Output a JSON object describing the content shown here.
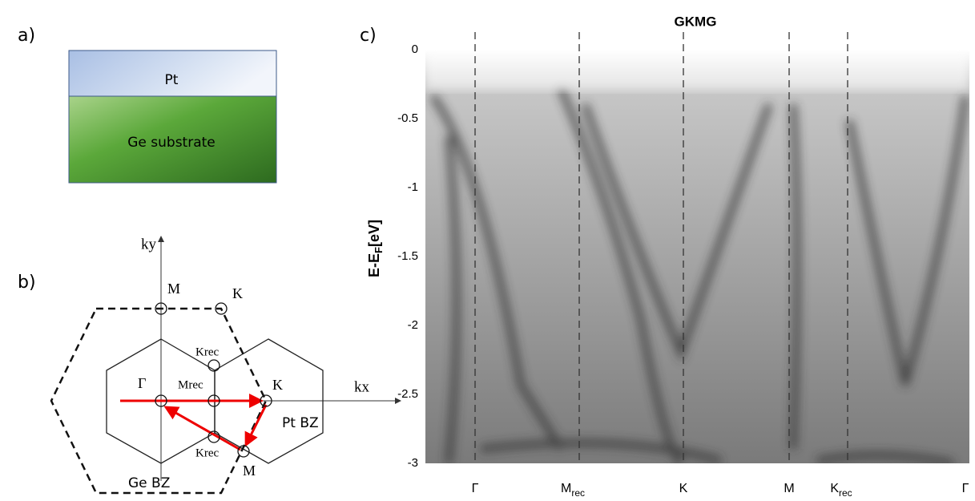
{
  "panel_a": {
    "label": "a)",
    "top_layer": "Pt",
    "bottom_layer": "Ge substrate"
  },
  "panel_b": {
    "label": "b)",
    "ky": "ky",
    "kx": "kx",
    "points": [
      "M",
      "K",
      "Krec",
      "Γ",
      "Mrec",
      "K",
      "Krec",
      "M"
    ],
    "pt_bz": "Pt BZ",
    "ge_bz": "Ge BZ"
  },
  "panel_c": {
    "label": "c)",
    "title": "GKMG",
    "y_label": {
      "main": "E-E",
      "sub": "F",
      "unit": "[eV]"
    },
    "ylim": [
      0,
      -3
    ],
    "yticks": [
      0,
      -0.5,
      -1,
      -1.5,
      -2,
      -2.5,
      -3
    ],
    "x_labels": [
      {
        "main": "Γ"
      },
      {
        "main": "M",
        "sub": "rec"
      },
      {
        "main": "K"
      },
      {
        "main": "M"
      },
      {
        "main": "K",
        "sub": "rec"
      },
      {
        "main": "Γ"
      }
    ]
  }
}
